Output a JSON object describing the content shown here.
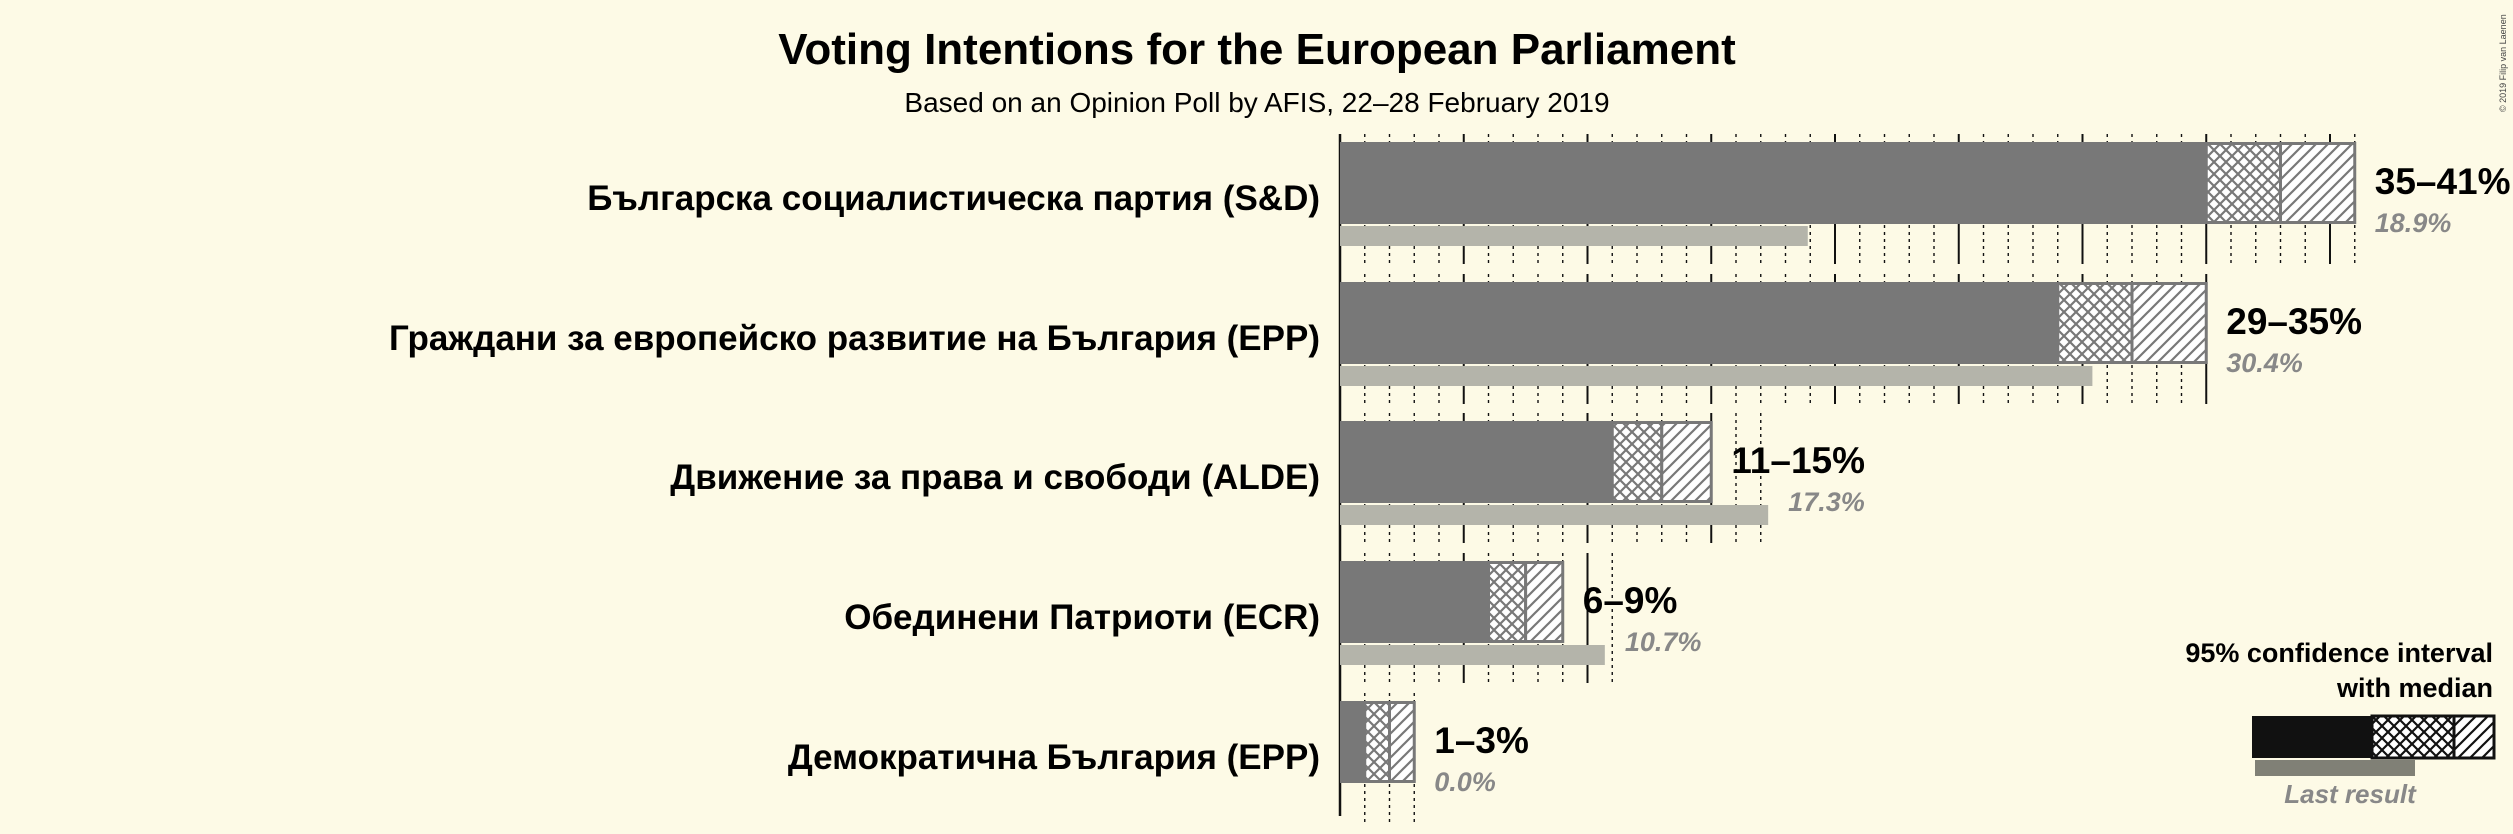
{
  "title": "Voting Intentions for the European Parliament",
  "subtitle": "Based on an Opinion Poll by AFIS, 22–28 February 2019",
  "copyright": "© 2019 Filip van Laenen",
  "legend": {
    "line1": "95% confidence interval",
    "line2": "with median",
    "last_result": "Last result"
  },
  "colors": {
    "background": "#fdfae6",
    "bar": "#787878",
    "bar_outline": "#787878",
    "last_result": "#b4b4aa",
    "legend_bar": "#111111",
    "legend_last": "#808076"
  },
  "chart_data": {
    "type": "bar",
    "orientation": "horizontal",
    "title": "Voting Intentions for the European Parliament",
    "subtitle": "Based on an Opinion Poll by AFIS, 22–28 February 2019",
    "categories": [
      "Българска социалистическа партия (S&D)",
      "Граждани за европейско развитие на България (EPP)",
      "Движение за права и свободи (ALDE)",
      "Обединени Патриоти (ECR)",
      "Демократична България (EPP)"
    ],
    "unit": "%",
    "series": [
      {
        "name": "95% confidence interval with median",
        "low": [
          35,
          29,
          11,
          6,
          1
        ],
        "median": [
          38,
          32,
          13,
          7.5,
          2
        ],
        "high": [
          41,
          35,
          15,
          9,
          3
        ],
        "labels": [
          "35–41%",
          "29–35%",
          "11–15%",
          "6–9%",
          "1–3%"
        ]
      },
      {
        "name": "Last result",
        "values": [
          18.9,
          30.4,
          17.3,
          10.7,
          0.0
        ],
        "labels": [
          "18.9%",
          "30.4%",
          "17.3%",
          "10.7%",
          "0.0%"
        ]
      }
    ],
    "xlim": [
      0,
      41
    ]
  }
}
